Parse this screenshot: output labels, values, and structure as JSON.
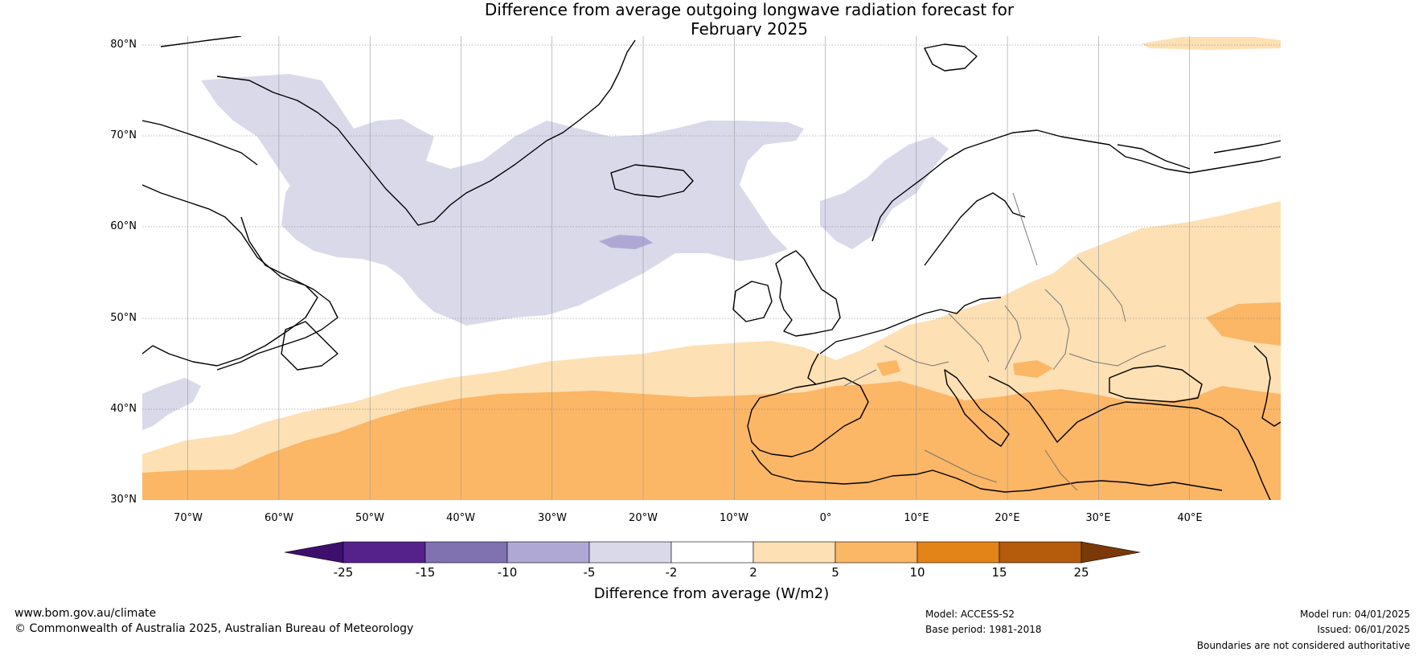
{
  "title_line1": "Difference from average outgoing longwave radiation forecast for",
  "title_line2": "February 2025",
  "map": {
    "projection": "equirectangular",
    "lon_range": [
      -75,
      50
    ],
    "lat_range": [
      30,
      81
    ],
    "lat_ticks": [
      "30°N",
      "40°N",
      "50°N",
      "60°N",
      "70°N",
      "80°N"
    ],
    "lon_ticks": [
      "70°W",
      "60°W",
      "50°W",
      "40°W",
      "30°W",
      "20°W",
      "10°W",
      "0°",
      "10°E",
      "20°E",
      "30°E",
      "40°E"
    ]
  },
  "colorbar": {
    "title": "Difference from average (W/m2)",
    "tick_labels": [
      "-25",
      "-15",
      "-10",
      "-5",
      "-2",
      "2",
      "5",
      "10",
      "15",
      "25"
    ],
    "colors": [
      "#3f0f6e",
      "#55218b",
      "#8072b1",
      "#b0a8d4",
      "#d9d9ea",
      "#ffffff",
      "#fde0b4",
      "#fbb666",
      "#e28418",
      "#b45b0c",
      "#7b3908"
    ]
  },
  "footer": {
    "website": "www.bom.gov.au/climate",
    "copyright": "© Commonwealth of Australia 2025, Australian Bureau of Meteorology",
    "model": "Model: ACCESS-S2",
    "base_period": "Base period: 1981-2018",
    "model_run": "Model run: 04/01/2025",
    "issued": "Issued: 06/01/2025",
    "disclaimer": "Boundaries are not considered authoritative"
  }
}
